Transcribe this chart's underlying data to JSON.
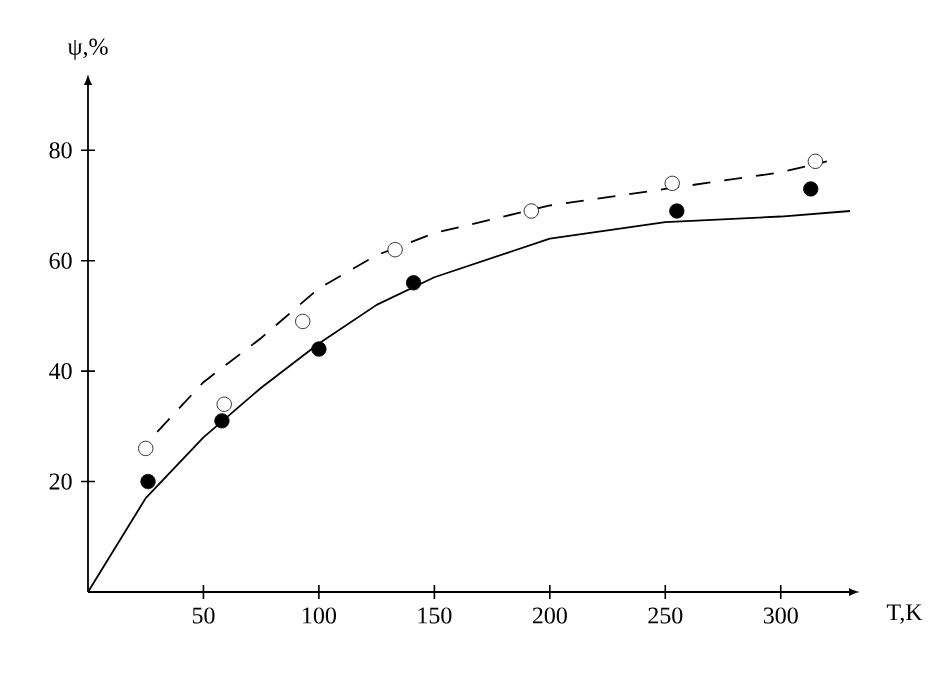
{
  "chart_data": {
    "type": "scatter",
    "xlabel": "T,K",
    "ylabel": "ψ,%",
    "xlim": [
      0,
      330
    ],
    "ylim": [
      0,
      92
    ],
    "xticks": [
      50,
      100,
      150,
      200,
      250,
      300
    ],
    "yticks": [
      20,
      40,
      60,
      80
    ],
    "grid": false,
    "series": [
      {
        "type": "scatter",
        "marker": "circle",
        "color": "#000000",
        "x": [
          26,
          58,
          100,
          141,
          255,
          313
        ],
        "values": [
          20,
          31,
          44,
          56,
          69,
          73
        ]
      },
      {
        "type": "scatter",
        "marker": "circle",
        "color": "#ffffff",
        "x": [
          25,
          59,
          93,
          133,
          192,
          253,
          315
        ],
        "values": [
          26,
          34,
          49,
          62,
          69,
          74,
          78
        ]
      },
      {
        "type": "line",
        "line_style": "solid",
        "color": "#000000",
        "marker": "none",
        "x": [
          0,
          25,
          50,
          75,
          100,
          125,
          150,
          200,
          250,
          300,
          330
        ],
        "values": [
          0,
          17,
          28,
          37,
          45,
          52,
          57,
          64,
          67,
          68,
          69
        ]
      },
      {
        "type": "line",
        "line_style": "dashed",
        "color": "#000000",
        "marker": "none",
        "x": [
          30,
          50,
          75,
          100,
          125,
          150,
          200,
          250,
          300,
          320
        ],
        "values": [
          29,
          38,
          46,
          55,
          61,
          65,
          70,
          73,
          76,
          78
        ]
      }
    ]
  }
}
